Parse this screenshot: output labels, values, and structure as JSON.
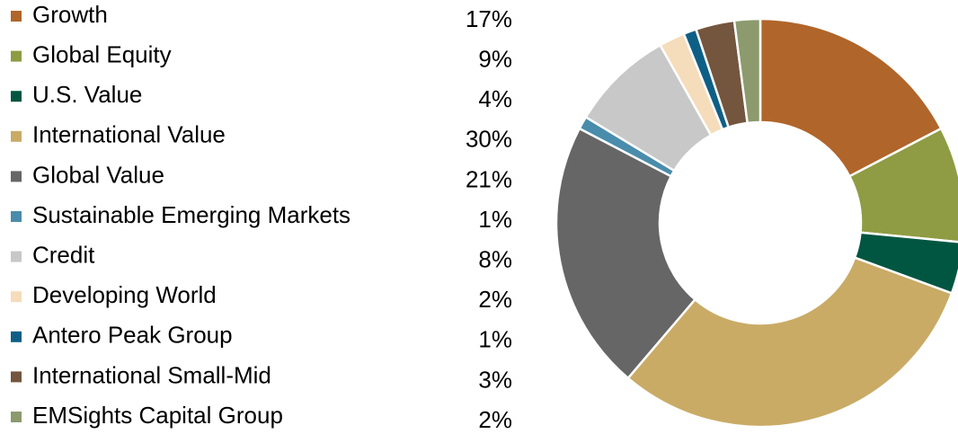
{
  "chart_data": {
    "type": "donut",
    "categories": [
      "Growth",
      "Global Equity",
      "U.S. Value",
      "International Value",
      "Global Value",
      "Sustainable Emerging Markets",
      "Credit",
      "Developing World",
      "Antero Peak Group",
      "International Small-Mid",
      "EMSights Capital Group"
    ],
    "values": [
      17,
      9,
      4,
      30,
      21,
      1,
      8,
      2,
      1,
      3,
      2
    ],
    "value_labels": [
      "17%",
      "9%",
      "4%",
      "30%",
      "21%",
      "1%",
      "8%",
      "2%",
      "1%",
      "3%",
      "2%"
    ],
    "colors": [
      "#b0652a",
      "#8f9c43",
      "#015641",
      "#c9ab66",
      "#666666",
      "#4a8cab",
      "#c8c8c8",
      "#f5dcbb",
      "#0e5f86",
      "#74553e",
      "#8c9a6e"
    ]
  }
}
